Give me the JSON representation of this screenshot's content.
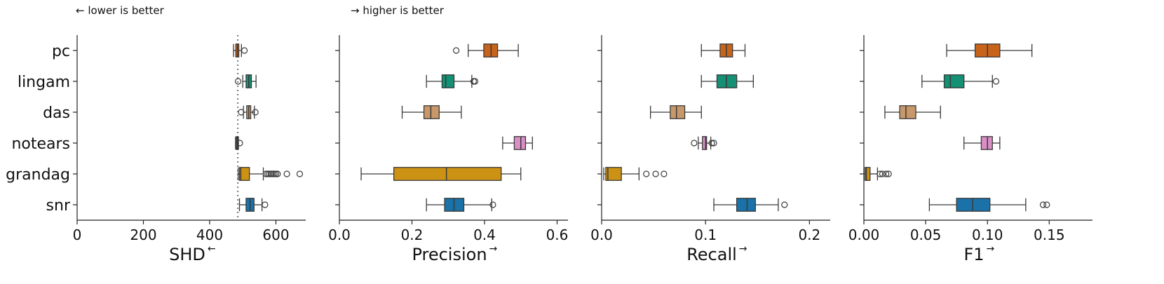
{
  "notes": {
    "left": "← lower is better",
    "right": "→ higher is better"
  },
  "methods": [
    "pc",
    "lingam",
    "das",
    "notears",
    "grandag",
    "snr"
  ],
  "colors": {
    "pc": "#c8641a",
    "lingam": "#149074",
    "das": "#c8986a",
    "notears": "#d98ec6",
    "grandag": "#cc9214",
    "snr": "#1a72a8",
    "whisker": "#3a3a3a"
  },
  "chart_data": [
    {
      "type": "boxplot",
      "orientation": "horizontal",
      "xlabel": "SHD",
      "xlabel_arrow": "←",
      "xlim": [
        0,
        690
      ],
      "xticks": [
        0,
        200,
        400,
        600
      ],
      "xtick_labels": [
        "0",
        "200",
        "400",
        "600"
      ],
      "reference_line": 485,
      "series": [
        {
          "name": "pc",
          "whislo": 472,
          "q1": 479,
          "median": 484,
          "q3": 488,
          "whishi": 496,
          "fliers": [
            505
          ]
        },
        {
          "name": "lingam",
          "whislo": 500,
          "q1": 510,
          "median": 518,
          "q3": 526,
          "whishi": 540,
          "fliers": [
            486
          ]
        },
        {
          "name": "das",
          "whislo": 502,
          "q1": 512,
          "median": 518,
          "q3": 524,
          "whishi": 535,
          "fliers": [
            495,
            538
          ]
        },
        {
          "name": "notears",
          "whislo": 478,
          "q1": 481,
          "median": 483,
          "q3": 485,
          "whishi": 487,
          "fliers": [
            491
          ]
        },
        {
          "name": "grandag",
          "whislo": 486,
          "q1": 490,
          "median": 494,
          "q3": 520,
          "whishi": 562,
          "fliers": [
            570,
            575,
            580,
            585,
            590,
            595,
            600,
            605,
            633,
            672
          ]
        },
        {
          "name": "snr",
          "whislo": 490,
          "q1": 510,
          "median": 522,
          "q3": 534,
          "whishi": 558,
          "fliers": [
            567
          ]
        }
      ]
    },
    {
      "type": "boxplot",
      "orientation": "horizontal",
      "xlabel": "Precision",
      "xlabel_arrow": "→",
      "xlim": [
        0,
        0.63
      ],
      "xticks": [
        0.0,
        0.2,
        0.4,
        0.6
      ],
      "xtick_labels": [
        "0.0",
        "0.2",
        "0.4",
        "0.6"
      ],
      "series": [
        {
          "name": "pc",
          "whislo": 0.355,
          "q1": 0.398,
          "median": 0.418,
          "q3": 0.436,
          "whishi": 0.493,
          "fliers": [
            0.322
          ]
        },
        {
          "name": "lingam",
          "whislo": 0.24,
          "q1": 0.283,
          "median": 0.293,
          "q3": 0.316,
          "whishi": 0.365,
          "fliers": [
            0.37,
            0.374
          ]
        },
        {
          "name": "das",
          "whislo": 0.173,
          "q1": 0.233,
          "median": 0.252,
          "q3": 0.275,
          "whishi": 0.336,
          "fliers": []
        },
        {
          "name": "notears",
          "whislo": 0.45,
          "q1": 0.482,
          "median": 0.5,
          "q3": 0.513,
          "whishi": 0.532,
          "fliers": []
        },
        {
          "name": "grandag",
          "whislo": 0.06,
          "q1": 0.15,
          "median": 0.295,
          "q3": 0.446,
          "whishi": 0.5,
          "fliers": []
        },
        {
          "name": "snr",
          "whislo": 0.24,
          "q1": 0.29,
          "median": 0.316,
          "q3": 0.343,
          "whishi": 0.42,
          "fliers": [
            0.423
          ]
        }
      ]
    },
    {
      "type": "boxplot",
      "orientation": "horizontal",
      "xlabel": "Recall",
      "xlabel_arrow": "→",
      "xlim": [
        0,
        0.22
      ],
      "xticks": [
        0.0,
        0.1,
        0.2
      ],
      "xtick_labels": [
        "0.0",
        "0.1",
        "0.2"
      ],
      "series": [
        {
          "name": "pc",
          "whislo": 0.096,
          "q1": 0.114,
          "median": 0.12,
          "q3": 0.126,
          "whishi": 0.138,
          "fliers": []
        },
        {
          "name": "lingam",
          "whislo": 0.096,
          "q1": 0.111,
          "median": 0.12,
          "q3": 0.13,
          "whishi": 0.146,
          "fliers": []
        },
        {
          "name": "das",
          "whislo": 0.047,
          "q1": 0.066,
          "median": 0.072,
          "q3": 0.08,
          "whishi": 0.096,
          "fliers": []
        },
        {
          "name": "notears",
          "whislo": 0.093,
          "q1": 0.097,
          "median": 0.1,
          "q3": 0.101,
          "whishi": 0.105,
          "fliers": [
            0.089,
            0.106,
            0.108
          ]
        },
        {
          "name": "grandag",
          "whislo": 0.002,
          "q1": 0.004,
          "median": 0.006,
          "q3": 0.019,
          "whishi": 0.036,
          "fliers": [
            0.043,
            0.052,
            0.06
          ]
        },
        {
          "name": "snr",
          "whislo": 0.108,
          "q1": 0.13,
          "median": 0.14,
          "q3": 0.148,
          "whishi": 0.17,
          "fliers": [
            0.176
          ]
        }
      ]
    },
    {
      "type": "boxplot",
      "orientation": "horizontal",
      "xlabel": "F1",
      "xlabel_arrow": "→",
      "xlim": [
        0,
        0.185
      ],
      "xticks": [
        0.0,
        0.05,
        0.1,
        0.15
      ],
      "xtick_labels": [
        "0.00",
        "0.05",
        "0.10",
        "0.15"
      ],
      "series": [
        {
          "name": "pc",
          "whislo": 0.067,
          "q1": 0.09,
          "median": 0.1,
          "q3": 0.11,
          "whishi": 0.136,
          "fliers": []
        },
        {
          "name": "lingam",
          "whislo": 0.047,
          "q1": 0.065,
          "median": 0.07,
          "q3": 0.081,
          "whishi": 0.104,
          "fliers": [
            0.107
          ]
        },
        {
          "name": "das",
          "whislo": 0.017,
          "q1": 0.029,
          "median": 0.034,
          "q3": 0.042,
          "whishi": 0.062,
          "fliers": []
        },
        {
          "name": "notears",
          "whislo": 0.081,
          "q1": 0.095,
          "median": 0.1,
          "q3": 0.104,
          "whishi": 0.11,
          "fliers": []
        },
        {
          "name": "grandag",
          "whislo": 0.0,
          "q1": 0.001,
          "median": 0.002,
          "q3": 0.005,
          "whishi": 0.011,
          "fliers": [
            0.013,
            0.015,
            0.018,
            0.02
          ]
        },
        {
          "name": "snr",
          "whislo": 0.053,
          "q1": 0.075,
          "median": 0.088,
          "q3": 0.102,
          "whishi": 0.131,
          "fliers": [
            0.145,
            0.148
          ]
        }
      ]
    }
  ]
}
